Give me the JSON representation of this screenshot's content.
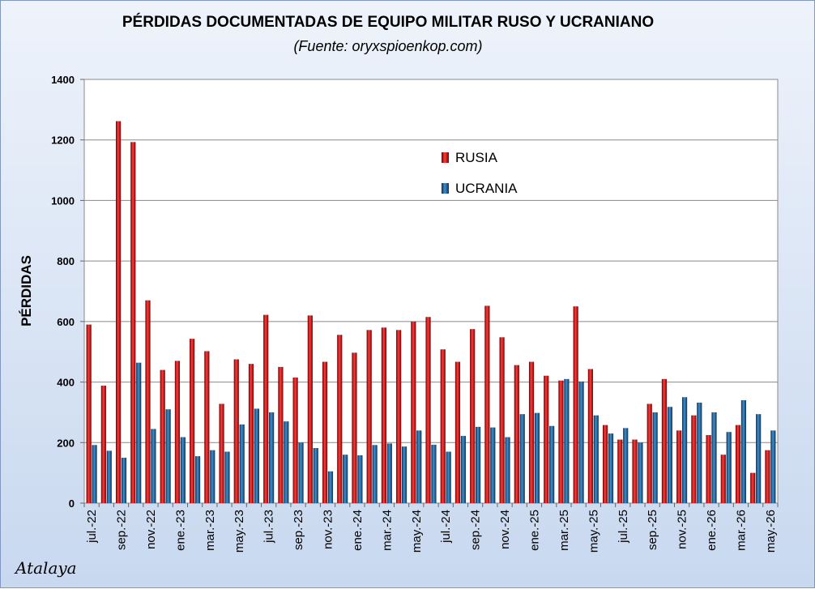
{
  "chart_data": {
    "type": "bar",
    "title": "PÉRDIDAS DOCUMENTADAS DE EQUIPO MILITAR RUSO Y UCRANIANO",
    "subtitle": "(Fuente: oryxspioenkop.com)",
    "xlabel": "",
    "ylabel": "PÉRDIDAS",
    "ylim": [
      0,
      1400
    ],
    "yticks": [
      0,
      200,
      400,
      600,
      800,
      1000,
      1200,
      1400
    ],
    "grid": true,
    "legend_position": "top-center",
    "categories": [
      "jul.-22",
      "ago.-22",
      "sep.-22",
      "oct.-22",
      "nov.-22",
      "dic.-22",
      "ene.-23",
      "feb.-23",
      "mar.-23",
      "abr.-23",
      "may.-23",
      "jun.-23",
      "jul.-23",
      "ago.-23",
      "sep.-23",
      "oct.-23",
      "nov.-23",
      "dic.-23",
      "ene.-24",
      "feb.-24",
      "mar.-24",
      "abr.-24",
      "may.-24",
      "jun.-24",
      "jul.-24",
      "ago.-24",
      "sep.-24",
      "oct.-24",
      "nov.-24",
      "dic.-24",
      "ene.-25",
      "feb.-25",
      "mar.-25",
      "abr.-25",
      "may.-25",
      "jun.-25",
      "jul.-25",
      "ago.-25",
      "sep.-25",
      "oct.-25",
      "nov.-25",
      "dic.-25",
      "ene.-26",
      "feb.-26",
      "mar.-26",
      "abr.-26",
      "may.-26"
    ],
    "tick_labels": [
      "jul.-22",
      "sep.-22",
      "nov.-22",
      "ene.-23",
      "mar.-23",
      "may.-23",
      "jul.-23",
      "sep.-23",
      "nov.-23",
      "ene.-24",
      "mar.-24",
      "may.-24",
      "jul.-24",
      "sep.-24",
      "nov.-24",
      "ene.-25",
      "mar.-25",
      "may.-25",
      "jul.-25",
      "sep.-25",
      "nov.-25",
      "ene.-26",
      "mar.-26",
      "may.-26"
    ],
    "series": [
      {
        "name": "RUSIA",
        "color": "#c00000",
        "values": [
          590,
          388,
          1262,
          1193,
          670,
          440,
          470,
          543,
          502,
          328,
          475,
          460,
          622,
          450,
          415,
          620,
          467,
          556,
          497,
          572,
          580,
          572,
          600,
          615,
          508,
          467,
          575,
          652,
          548,
          456,
          467,
          421,
          405,
          650,
          443,
          258,
          210,
          210,
          328,
          410,
          240,
          290,
          225,
          160,
          258,
          100,
          175
        ]
      },
      {
        "name": "UCRANIA",
        "color": "#1f5c8f",
        "values": [
          192,
          173,
          150,
          464,
          245,
          310,
          218,
          155,
          175,
          170,
          260,
          312,
          300,
          270,
          200,
          182,
          105,
          160,
          158,
          192,
          197,
          187,
          240,
          193,
          170,
          222,
          252,
          250,
          218,
          294,
          298,
          255,
          410,
          402,
          290,
          230,
          248,
          200,
          300,
          318,
          350,
          332,
          300,
          235,
          340,
          294,
          240
        ]
      }
    ]
  },
  "signature": "Atalaya"
}
